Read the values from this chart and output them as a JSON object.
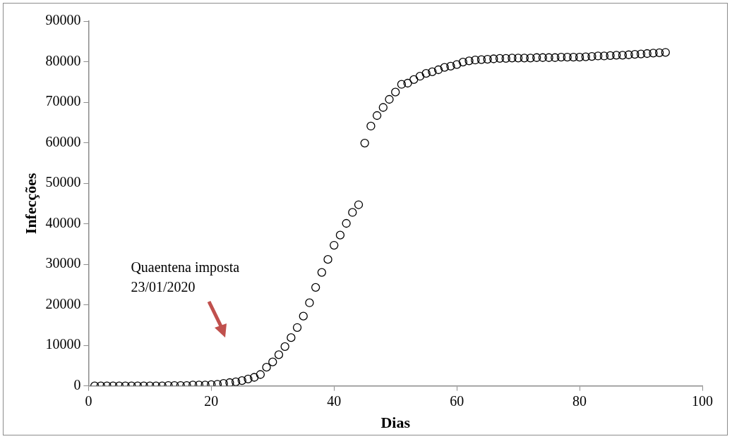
{
  "chart_data": {
    "type": "scatter",
    "xlabel": "Dias",
    "ylabel": "Infecções",
    "xlim": [
      0,
      100
    ],
    "xticks": [
      0,
      20,
      40,
      60,
      80,
      100
    ],
    "ylim": [
      0,
      90000
    ],
    "yticks": [
      0,
      10000,
      20000,
      30000,
      40000,
      50000,
      60000,
      70000,
      80000,
      90000
    ],
    "grid": false,
    "legend": false,
    "marker": "circle",
    "annotations": [
      "Quaentena imposta\n23/01/2020"
    ],
    "series": [
      {
        "color": "#000000",
        "x": [
          1,
          2,
          3,
          4,
          5,
          6,
          7,
          8,
          9,
          10,
          11,
          12,
          13,
          14,
          15,
          16,
          17,
          18,
          19,
          20,
          21,
          22,
          23,
          24,
          25,
          26,
          27,
          28,
          29,
          30,
          31,
          32,
          33,
          34,
          35,
          36,
          37,
          38,
          39,
          40,
          41,
          42,
          43,
          44,
          45,
          46,
          47,
          48,
          49,
          50,
          51,
          52,
          53,
          54,
          55,
          56,
          57,
          58,
          59,
          60,
          61,
          62,
          63,
          64,
          65,
          66,
          67,
          68,
          69,
          70,
          71,
          72,
          73,
          74,
          75,
          76,
          77,
          78,
          79,
          80,
          81,
          82,
          83,
          84,
          85,
          86,
          87,
          88,
          89,
          90,
          91,
          92,
          93,
          94
        ],
        "values": [
          0,
          0,
          0,
          0,
          0,
          0,
          0,
          0,
          0,
          0,
          0,
          0,
          100,
          100,
          100,
          100,
          200,
          200,
          200,
          300,
          400,
          600,
          800,
          1000,
          1300,
          1700,
          2100,
          2800,
          4600,
          5900,
          7700,
          9700,
          11900,
          14400,
          17200,
          20500,
          24300,
          28000,
          31200,
          34700,
          37200,
          40100,
          42800,
          44700,
          59900,
          64100,
          66700,
          68700,
          70700,
          72500,
          74400,
          74700,
          75600,
          76400,
          77100,
          77500,
          78000,
          78600,
          78900,
          79300,
          79900,
          80200,
          80400,
          80500,
          80600,
          80700,
          80800,
          80800,
          80900,
          80900,
          80900,
          80900,
          81000,
          81000,
          81000,
          81000,
          81100,
          81100,
          81100,
          81100,
          81200,
          81300,
          81400,
          81400,
          81500,
          81600,
          81600,
          81700,
          81800,
          81900,
          82000,
          82100,
          82200,
          82300
        ]
      }
    ]
  }
}
